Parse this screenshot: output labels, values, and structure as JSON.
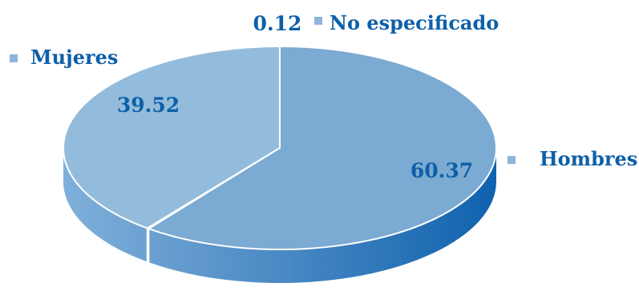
{
  "chart_data": {
    "type": "pie",
    "variant": "3d",
    "legend_placement": "labels-outside",
    "slices": [
      {
        "name": "Hombres",
        "value": 60.37,
        "value_label": "60.37",
        "color": "#7BAAD2"
      },
      {
        "name": "No especificado",
        "value": 0.12,
        "value_label": "0.12",
        "color": "#7BAAD2"
      },
      {
        "name": "Mujeres",
        "value": 39.52,
        "value_label": "39.52",
        "color": "#93BCDC"
      }
    ],
    "colors": {
      "label_text": "#0E5FA8",
      "legend_marker": "#8DB5DA",
      "side_light": "#6A9FD1",
      "side_dark": "#0F62AE",
      "separator": "#ffffff"
    }
  }
}
